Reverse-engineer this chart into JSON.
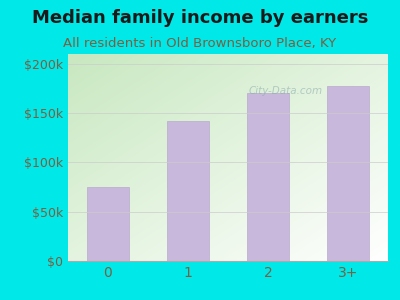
{
  "title": "Median family income by earners",
  "subtitle": "All residents in Old Brownsboro Place, KY",
  "categories": [
    "0",
    "1",
    "2",
    "3+"
  ],
  "values": [
    75000,
    142000,
    170000,
    178000
  ],
  "bar_color": "#c8b8dc",
  "bar_edge_color": "#baaace",
  "background_color": "#00e8e8",
  "plot_bg_color_topleft": "#c8e8c0",
  "plot_bg_color_white": "#ffffff",
  "title_color": "#1a1a1a",
  "subtitle_color": "#7a6040",
  "tick_color": "#7a6040",
  "ylim": [
    0,
    210000
  ],
  "yticks": [
    0,
    50000,
    100000,
    150000,
    200000
  ],
  "ytick_labels": [
    "$0",
    "$50k",
    "$100k",
    "$150k",
    "$200k"
  ],
  "title_fontsize": 13,
  "subtitle_fontsize": 9.5,
  "watermark": "City-Data.com",
  "grid_color": "#cccccc"
}
